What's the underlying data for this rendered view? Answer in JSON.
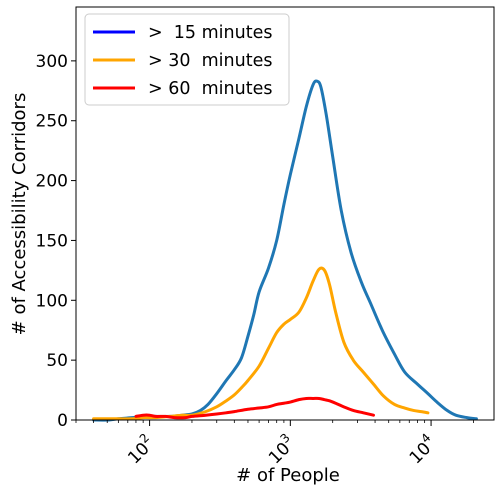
{
  "chart_data": {
    "type": "line",
    "xlabel": "# of People",
    "ylabel": "# of Accessibility Corridors",
    "xscale": "log",
    "xlim": [
      30,
      28000
    ],
    "ylim": [
      0,
      345
    ],
    "grid": false,
    "legend_position": "top-left",
    "yticks": [
      0,
      50,
      100,
      150,
      200,
      250,
      300
    ],
    "xticks": [
      {
        "value": 100,
        "base": "10",
        "exp": "2"
      },
      {
        "value": 1000,
        "base": "10",
        "exp": "3"
      },
      {
        "value": 10000,
        "base": "10",
        "exp": "4"
      }
    ],
    "legend": [
      {
        "label": ">  15 minutes",
        "color": "#0000ff"
      },
      {
        "label": "> 30  minutes",
        "color": "#ffa500"
      },
      {
        "label": "> 60  minutes",
        "color": "#ff0000"
      }
    ],
    "series": [
      {
        "color": "#1f77b4",
        "x": [
          40,
          50,
          60,
          75,
          90,
          110,
          140,
          170,
          200,
          230,
          260,
          300,
          350,
          400,
          450,
          500,
          550,
          600,
          700,
          800,
          900,
          1000,
          1150,
          1300,
          1450,
          1550,
          1650,
          1800,
          2000,
          2300,
          2700,
          3200,
          3700,
          4500,
          5500,
          6500,
          8000,
          9500,
          11000,
          13000,
          15000,
          18000,
          21000
        ],
        "values": [
          0,
          0,
          1,
          2,
          3,
          3,
          3,
          4,
          5,
          8,
          13,
          22,
          33,
          42,
          52,
          70,
          88,
          107,
          127,
          150,
          180,
          205,
          235,
          262,
          280,
          283,
          278,
          255,
          220,
          175,
          140,
          115,
          98,
          75,
          55,
          40,
          30,
          22,
          15,
          8,
          4,
          2,
          1
        ]
      },
      {
        "color": "#ffa500",
        "x": [
          40,
          50,
          60,
          75,
          90,
          110,
          140,
          170,
          200,
          250,
          300,
          350,
          400,
          450,
          500,
          600,
          700,
          800,
          900,
          1000,
          1150,
          1300,
          1450,
          1600,
          1750,
          1900,
          2100,
          2400,
          2800,
          3300,
          3900,
          4600,
          5500,
          6500,
          7500,
          8500,
          9500
        ],
        "values": [
          1,
          1,
          1,
          1,
          2,
          2,
          3,
          4,
          4,
          7,
          11,
          16,
          21,
          27,
          33,
          45,
          60,
          73,
          80,
          84,
          90,
          102,
          116,
          126,
          125,
          113,
          90,
          65,
          50,
          40,
          30,
          20,
          13,
          10,
          8,
          7,
          6
        ]
      },
      {
        "color": "#ff0000",
        "x": [
          80,
          90,
          100,
          110,
          130,
          150,
          180,
          200,
          250,
          300,
          350,
          400,
          500,
          600,
          700,
          800,
          900,
          1000,
          1150,
          1300,
          1450,
          1600,
          1750,
          1900,
          2100,
          2400,
          2800,
          3300,
          3900
        ],
        "values": [
          3,
          4,
          4,
          3,
          3,
          2,
          2,
          3,
          4,
          5,
          6,
          7,
          9,
          10,
          11,
          13,
          14,
          15,
          17,
          18,
          18,
          18,
          17,
          16,
          14,
          11,
          8,
          6,
          4
        ]
      }
    ]
  }
}
